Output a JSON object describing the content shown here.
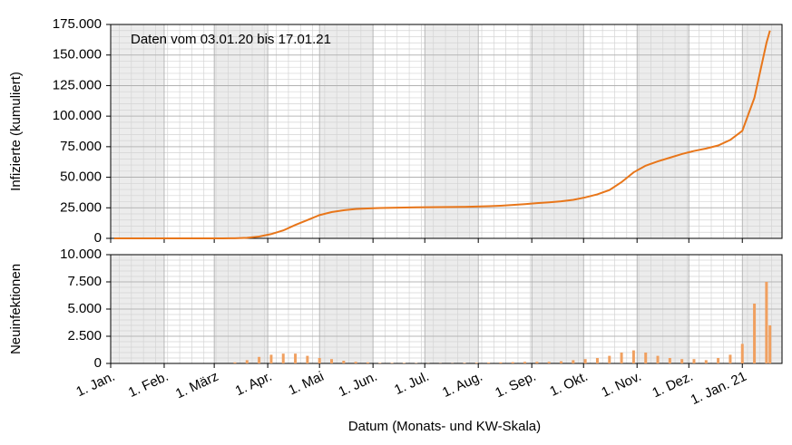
{
  "chart_data": [
    {
      "type": "line",
      "annotation": "Daten vom 03.01.20 bis 17.01.21",
      "y_label": "Infizierte (kumuliert)",
      "x": [
        "2020-01-03",
        "2020-01-10",
        "2020-01-17",
        "2020-01-24",
        "2020-01-31",
        "2020-02-07",
        "2020-02-14",
        "2020-02-21",
        "2020-02-28",
        "2020-03-06",
        "2020-03-13",
        "2020-03-20",
        "2020-03-27",
        "2020-04-03",
        "2020-04-10",
        "2020-04-17",
        "2020-04-24",
        "2020-05-01",
        "2020-05-08",
        "2020-05-15",
        "2020-05-22",
        "2020-05-29",
        "2020-06-05",
        "2020-06-12",
        "2020-06-19",
        "2020-06-26",
        "2020-07-03",
        "2020-07-10",
        "2020-07-17",
        "2020-07-24",
        "2020-07-31",
        "2020-08-07",
        "2020-08-14",
        "2020-08-21",
        "2020-08-28",
        "2020-09-04",
        "2020-09-11",
        "2020-09-18",
        "2020-09-25",
        "2020-10-02",
        "2020-10-09",
        "2020-10-16",
        "2020-10-23",
        "2020-10-30",
        "2020-11-06",
        "2020-11-13",
        "2020-11-20",
        "2020-11-27",
        "2020-12-04",
        "2020-12-11",
        "2020-12-18",
        "2020-12-25",
        "2021-01-01",
        "2021-01-08",
        "2021-01-15",
        "2021-01-17"
      ],
      "series": [
        {
          "color": "#e8761a",
          "values": [
            0,
            0,
            0,
            0,
            0,
            0,
            0,
            0,
            0,
            0,
            100,
            500,
            1500,
            3500,
            6500,
            11000,
            15000,
            19000,
            21500,
            23000,
            24000,
            24500,
            24800,
            25000,
            25200,
            25400,
            25500,
            25600,
            25700,
            25800,
            26000,
            26300,
            26700,
            27300,
            28000,
            28800,
            29500,
            30300,
            31500,
            33500,
            36000,
            39500,
            46000,
            54000,
            59500,
            63000,
            66000,
            69000,
            71500,
            73500,
            76000,
            80500,
            88000,
            115000,
            160000,
            170000
          ]
        }
      ],
      "xlim": [
        "2020-01-01",
        "2021-01-24"
      ],
      "xticks": [
        "2020-01-01",
        "2020-02-01",
        "2020-03-01",
        "2020-04-01",
        "2020-05-01",
        "2020-06-01",
        "2020-07-01",
        "2020-08-01",
        "2020-09-01",
        "2020-10-01",
        "2020-11-01",
        "2020-12-01",
        "2021-01-01"
      ],
      "ylim": [
        0,
        175000
      ],
      "yticks": [
        {
          "value": 0,
          "label": "0"
        },
        {
          "value": 25000,
          "label": "25.000"
        },
        {
          "value": 50000,
          "label": "50.000"
        },
        {
          "value": 75000,
          "label": "75.000"
        },
        {
          "value": 100000,
          "label": "100.000"
        },
        {
          "value": 125000,
          "label": "125.000"
        },
        {
          "value": 150000,
          "label": "150.000"
        },
        {
          "value": 175000,
          "label": "175.000"
        }
      ],
      "grid": true,
      "minor_grid": true
    },
    {
      "type": "bar",
      "y_label": "Neuinfektionen",
      "x_label": "Datum (Monats- und KW-Skala)",
      "x": [
        "2020-01-03",
        "2020-01-10",
        "2020-01-17",
        "2020-01-24",
        "2020-01-31",
        "2020-02-07",
        "2020-02-14",
        "2020-02-21",
        "2020-02-28",
        "2020-03-06",
        "2020-03-13",
        "2020-03-20",
        "2020-03-27",
        "2020-04-03",
        "2020-04-10",
        "2020-04-17",
        "2020-04-24",
        "2020-05-01",
        "2020-05-08",
        "2020-05-15",
        "2020-05-22",
        "2020-05-29",
        "2020-06-05",
        "2020-06-12",
        "2020-06-19",
        "2020-06-26",
        "2020-07-03",
        "2020-07-10",
        "2020-07-17",
        "2020-07-24",
        "2020-07-31",
        "2020-08-07",
        "2020-08-14",
        "2020-08-21",
        "2020-08-28",
        "2020-09-04",
        "2020-09-11",
        "2020-09-18",
        "2020-09-25",
        "2020-10-02",
        "2020-10-09",
        "2020-10-16",
        "2020-10-23",
        "2020-10-30",
        "2020-11-06",
        "2020-11-13",
        "2020-11-20",
        "2020-11-27",
        "2020-12-04",
        "2020-12-11",
        "2020-12-18",
        "2020-12-25",
        "2021-01-01",
        "2021-01-08",
        "2021-01-15",
        "2021-01-17"
      ],
      "series": [
        {
          "color": "#f0a060",
          "values": [
            0,
            0,
            0,
            0,
            0,
            0,
            0,
            0,
            0,
            0,
            100,
            300,
            600,
            800,
            900,
            900,
            700,
            500,
            400,
            250,
            150,
            100,
            50,
            50,
            50,
            30,
            20,
            20,
            20,
            50,
            60,
            80,
            100,
            120,
            150,
            150,
            150,
            200,
            300,
            400,
            500,
            700,
            1000,
            1200,
            1000,
            700,
            500,
            400,
            400,
            300,
            500,
            800,
            1800,
            5500,
            7500,
            3500
          ]
        }
      ],
      "xlim": [
        "2020-01-01",
        "2021-01-24"
      ],
      "xticks": [
        {
          "value": "2020-01-01",
          "label": "1. Jan."
        },
        {
          "value": "2020-02-01",
          "label": "1. Feb."
        },
        {
          "value": "2020-03-01",
          "label": "1. März"
        },
        {
          "value": "2020-04-01",
          "label": "1. Apr."
        },
        {
          "value": "2020-05-01",
          "label": "1. Mai"
        },
        {
          "value": "2020-06-01",
          "label": "1. Jun."
        },
        {
          "value": "2020-07-01",
          "label": "1. Jul."
        },
        {
          "value": "2020-08-01",
          "label": "1. Aug."
        },
        {
          "value": "2020-09-01",
          "label": "1. Sep."
        },
        {
          "value": "2020-10-01",
          "label": "1. Okt."
        },
        {
          "value": "2020-11-01",
          "label": "1. Nov."
        },
        {
          "value": "2020-12-01",
          "label": "1. Dez."
        },
        {
          "value": "2021-01-01",
          "label": "1. Jan. 21"
        }
      ],
      "ylim": [
        0,
        10000
      ],
      "yticks": [
        {
          "value": 0,
          "label": "0"
        },
        {
          "value": 2500,
          "label": "2.500"
        },
        {
          "value": 5000,
          "label": "5.000"
        },
        {
          "value": 7500,
          "label": "7.500"
        },
        {
          "value": 10000,
          "label": "10.000"
        }
      ],
      "grid": true,
      "minor_grid": true
    }
  ]
}
